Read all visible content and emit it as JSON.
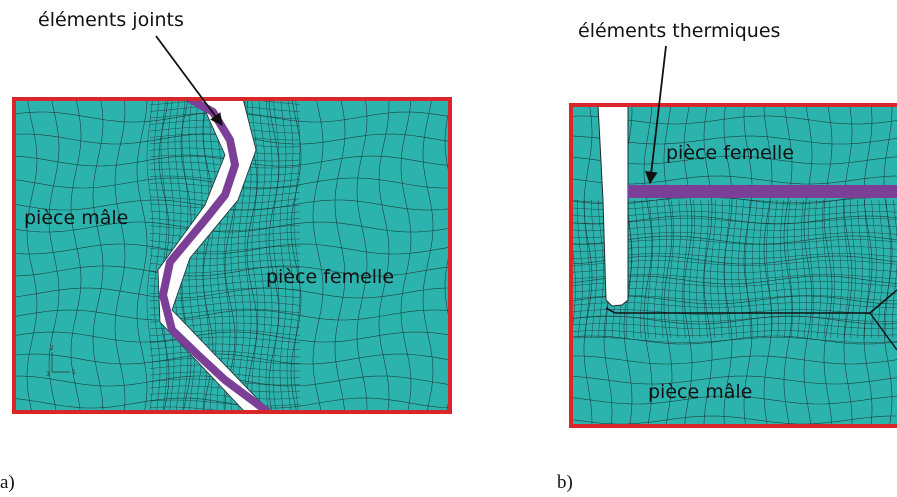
{
  "figure_a": {
    "annotation": "éléments joints",
    "region_left": "pièce mâle",
    "region_right": "pièce femelle",
    "caption": "a)",
    "axis_y": "2",
    "axis_x": "1",
    "axis_o": "3"
  },
  "figure_b": {
    "annotation": "éléments thermiques",
    "region_top": "pièce femelle",
    "region_bottom": "pièce mâle",
    "caption": "b)"
  },
  "colors": {
    "mesh_fill": "#2db3ad",
    "frame": "#d9262b",
    "element_band": "#7b3f98",
    "mesh_line": "#1a2d2c"
  }
}
